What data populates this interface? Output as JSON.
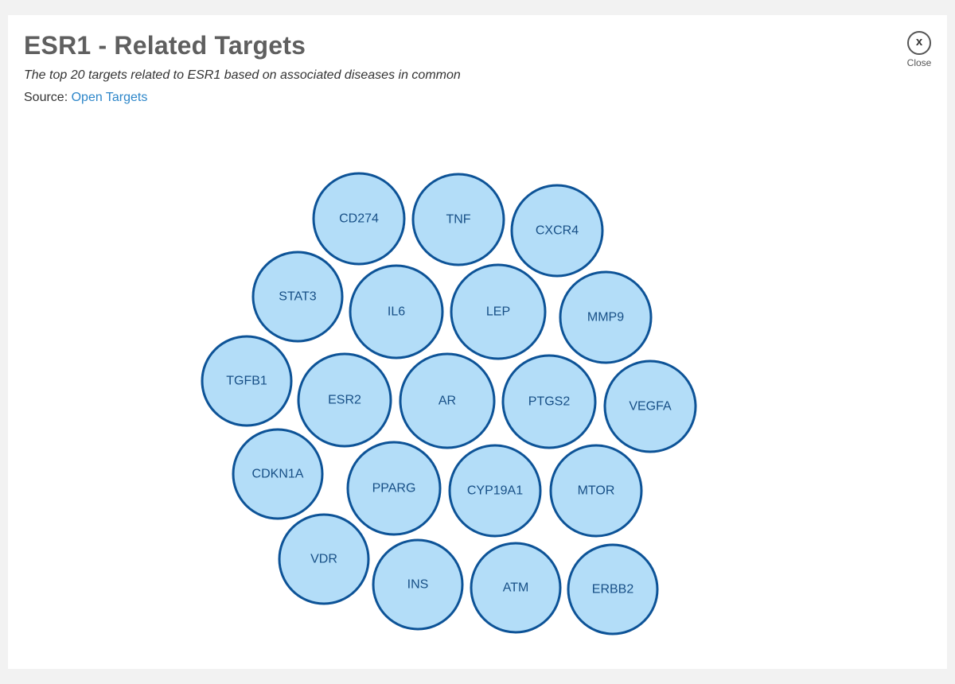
{
  "header": {
    "title": "ESR1 - Related Targets",
    "subtitle": "The top 20 targets related to ESR1 based on associated diseases in common",
    "source_prefix": "Source: ",
    "source_link": "Open Targets"
  },
  "close": {
    "icon_glyph": "x",
    "label": "Close"
  },
  "bubble_colors": {
    "fill": "#b3ddf8",
    "stroke": "#0d5397",
    "text": "#174f86"
  },
  "targets": [
    "CD274",
    "TNF",
    "CXCR4",
    "STAT3",
    "IL6",
    "LEP",
    "MMP9",
    "TGFB1",
    "ESR2",
    "AR",
    "PTGS2",
    "VEGFA",
    "CDKN1A",
    "PPARG",
    "CYP19A1",
    "MTOR",
    "VDR",
    "INS",
    "ATM",
    "ERBB2"
  ]
}
